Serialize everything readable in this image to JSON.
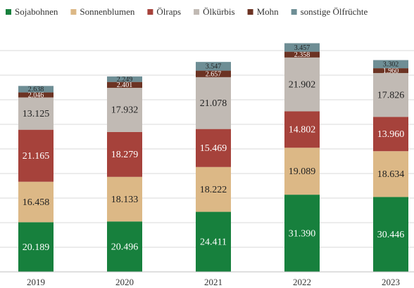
{
  "chart_data": {
    "type": "stacked_bar",
    "categories": [
      "2019",
      "2020",
      "2021",
      "2022",
      "2023"
    ],
    "series": [
      {
        "name": "Sojabohnen",
        "color": "#17803d",
        "values": [
          20189,
          20496,
          24411,
          31390,
          30446
        ],
        "value_labels": [
          "20.189",
          "20.496",
          "24.411",
          "31.390",
          "30.446"
        ]
      },
      {
        "name": "Sonnenblumen",
        "color": "#dcb886",
        "values": [
          16458,
          18133,
          18222,
          19089,
          18634
        ],
        "value_labels": [
          "16.458",
          "18.133",
          "18.222",
          "19.089",
          "18.634"
        ]
      },
      {
        "name": "Ölraps",
        "color": "#a6423b",
        "values": [
          21165,
          18279,
          15469,
          14802,
          13960
        ],
        "value_labels": [
          "21.165",
          "18.279",
          "15.469",
          "14.802",
          "13.960"
        ]
      },
      {
        "name": "Ölkürbis",
        "color": "#c1bab4",
        "values": [
          13125,
          17932,
          21078,
          21902,
          17826
        ],
        "value_labels": [
          "13.125",
          "17.932",
          "21.078",
          "21.902",
          "17.826"
        ]
      },
      {
        "name": "Mohn",
        "color": "#6c3323",
        "values": [
          2046,
          2401,
          2657,
          2358,
          1960
        ],
        "value_labels": [
          "2.046",
          "2.401",
          "2.657",
          "2.358",
          "1.960"
        ]
      },
      {
        "name": "sonstige Ölfrüchte",
        "color": "#6e8e95",
        "values": [
          2638,
          2249,
          3547,
          3457,
          3302
        ],
        "value_labels": [
          "2.638",
          "2.249",
          "3.547",
          "3.457",
          "3.302"
        ]
      }
    ],
    "ylim": [
      0,
      95000
    ],
    "yticks": [
      0,
      10000,
      20000,
      30000,
      40000,
      50000,
      60000,
      70000,
      80000,
      90000
    ],
    "grid": true,
    "legend": "top"
  }
}
